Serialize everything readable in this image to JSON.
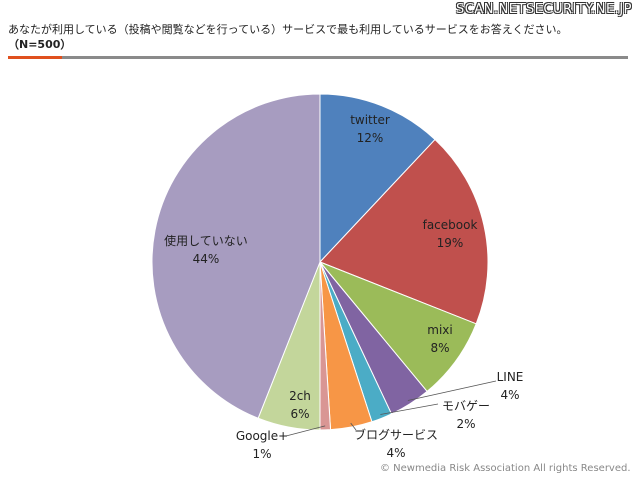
{
  "watermark": "SCAN.NETSECURITY.NE.JP",
  "question": "あなたが利用している（投稿や閲覧などを行っている）サービスで最も利用しているサービスをお答えください。",
  "sample": "（N=500）",
  "copyright": "© Newmedia Risk Association All rights Reserved.",
  "colors": {
    "accent_bar": "#e0501e",
    "rule": "#8a8a8a"
  },
  "chart_data": {
    "type": "pie",
    "categories": [
      "twitter",
      "facebook",
      "mixi",
      "LINE",
      "モバゲー",
      "ブログサービス",
      "Google+",
      "2ch",
      "使用していない"
    ],
    "values": [
      12,
      19,
      8,
      4,
      2,
      4,
      1,
      6,
      44
    ],
    "value_labels": [
      "12%",
      "19%",
      "8%",
      "4%",
      "2%",
      "4%",
      "1%",
      "6%",
      "44%"
    ],
    "colors": [
      "#4f81bd",
      "#c0504d",
      "#9bbb59",
      "#8064a2",
      "#4bacc6",
      "#f79646",
      "#d99694",
      "#c3d69b",
      "#a79cc0"
    ],
    "start": "12 o'clock",
    "direction": "clockwise",
    "labels_outside": [
      "LINE",
      "モバゲー",
      "ブログサービス",
      "Google+"
    ]
  }
}
